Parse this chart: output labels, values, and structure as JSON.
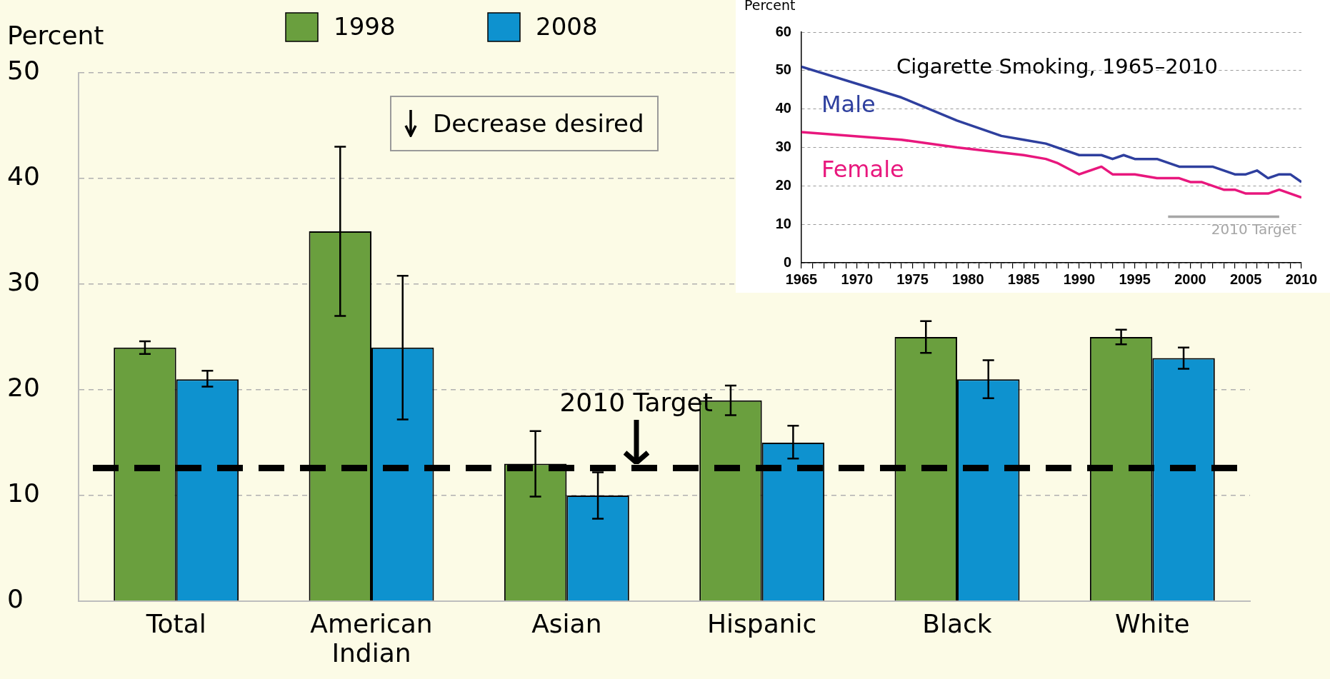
{
  "chart_data": [
    {
      "type": "bar",
      "ylabel": "Percent",
      "categories": [
        "Total",
        "American Indian",
        "Asian",
        "Hispanic",
        "Black",
        "White"
      ],
      "series": [
        {
          "name": "1998",
          "color": "#6a9f3e",
          "values": [
            24,
            35,
            13,
            19,
            25,
            25
          ],
          "errors": [
            [
              23.4,
              24.6
            ],
            [
              27,
              43
            ],
            [
              9.9,
              16.1
            ],
            [
              17.6,
              20.4
            ],
            [
              23.5,
              26.5
            ],
            [
              24.3,
              25.7
            ]
          ]
        },
        {
          "name": "2008",
          "color": "#0e92cf",
          "values": [
            21,
            24,
            10,
            15,
            21,
            23
          ],
          "errors": [
            [
              20.3,
              21.8
            ],
            [
              17.2,
              30.8
            ],
            [
              7.8,
              12.2
            ],
            [
              13.5,
              16.6
            ],
            [
              19.2,
              22.8
            ],
            [
              22,
              24
            ]
          ]
        }
      ],
      "ylim": [
        0,
        50
      ],
      "yticks": [
        0,
        10,
        20,
        30,
        40,
        50
      ],
      "grid": "y",
      "legend": "top",
      "ref_lines": [
        {
          "axis": "y",
          "value": 12.6,
          "label": "2010 Target",
          "color": "#000000",
          "line_style": "dashed"
        }
      ],
      "annotations": [
        "Decrease desired"
      ]
    },
    {
      "type": "line",
      "title": "Cigarette Smoking, 1965–2010",
      "ylabel": "Percent",
      "series": [
        {
          "name": "Male",
          "color": "#2e3f9e",
          "x": [
            1965,
            1974,
            1979,
            1983,
            1985,
            1987,
            1990,
            1991,
            1992,
            1993,
            1994,
            1995,
            1997,
            1999,
            2000,
            2002,
            2004,
            2005,
            2006,
            2007,
            2008,
            2009,
            2010
          ],
          "values": [
            51,
            43,
            37,
            33,
            32,
            31,
            28,
            28,
            28,
            27,
            28,
            27,
            27,
            25,
            25,
            25,
            23,
            23,
            24,
            22,
            23,
            23,
            21
          ]
        },
        {
          "name": "Female",
          "color": "#e8177d",
          "x": [
            1965,
            1974,
            1979,
            1985,
            1987,
            1988,
            1990,
            1992,
            1993,
            1995,
            1997,
            1999,
            2000,
            2001,
            2003,
            2004,
            2005,
            2007,
            2008,
            2010
          ],
          "values": [
            34,
            32,
            30,
            28,
            27,
            26,
            23,
            25,
            23,
            23,
            22,
            22,
            21,
            21,
            19,
            19,
            18,
            18,
            19,
            17
          ]
        },
        {
          "name": "2010 Target",
          "color": "#a6a6a6",
          "x": [
            1998,
            2008
          ],
          "values": [
            12,
            12
          ]
        }
      ],
      "xlim": [
        1965,
        2010
      ],
      "xticks": [
        1965,
        {
          "value": 1966,
          "label": null
        },
        {
          "value": 1967,
          "label": null
        },
        {
          "value": 1968,
          "label": null
        },
        {
          "value": 1969,
          "label": null
        },
        1970,
        {
          "value": 1971,
          "label": null
        },
        {
          "value": 1972,
          "label": null
        },
        {
          "value": 1973,
          "label": null
        },
        {
          "value": 1974,
          "label": null
        },
        1975,
        {
          "value": 1976,
          "label": null
        },
        {
          "value": 1977,
          "label": null
        },
        {
          "value": 1978,
          "label": null
        },
        {
          "value": 1979,
          "label": null
        },
        1980,
        {
          "value": 1981,
          "label": null
        },
        {
          "value": 1982,
          "label": null
        },
        {
          "value": 1983,
          "label": null
        },
        {
          "value": 1984,
          "label": null
        },
        1985,
        {
          "value": 1986,
          "label": null
        },
        {
          "value": 1987,
          "label": null
        },
        {
          "value": 1988,
          "label": null
        },
        {
          "value": 1989,
          "label": null
        },
        1990,
        {
          "value": 1991,
          "label": null
        },
        {
          "value": 1992,
          "label": null
        },
        {
          "value": 1993,
          "label": null
        },
        {
          "value": 1994,
          "label": null
        },
        1995,
        {
          "value": 1996,
          "label": null
        },
        {
          "value": 1997,
          "label": null
        },
        {
          "value": 1998,
          "label": null
        },
        {
          "value": 1999,
          "label": null
        },
        2000,
        {
          "value": 2001,
          "label": null
        },
        {
          "value": 2002,
          "label": null
        },
        {
          "value": 2003,
          "label": null
        },
        {
          "value": 2004,
          "label": null
        },
        2005,
        {
          "value": 2006,
          "label": null
        },
        {
          "value": 2007,
          "label": null
        },
        {
          "value": 2008,
          "label": null
        },
        {
          "value": 2009,
          "label": null
        },
        2010
      ],
      "ylim": [
        0,
        60
      ],
      "yticks": [
        0,
        10,
        20,
        30,
        40,
        50,
        60
      ],
      "grid": "y",
      "marker": "none",
      "line_style": "solid"
    }
  ]
}
